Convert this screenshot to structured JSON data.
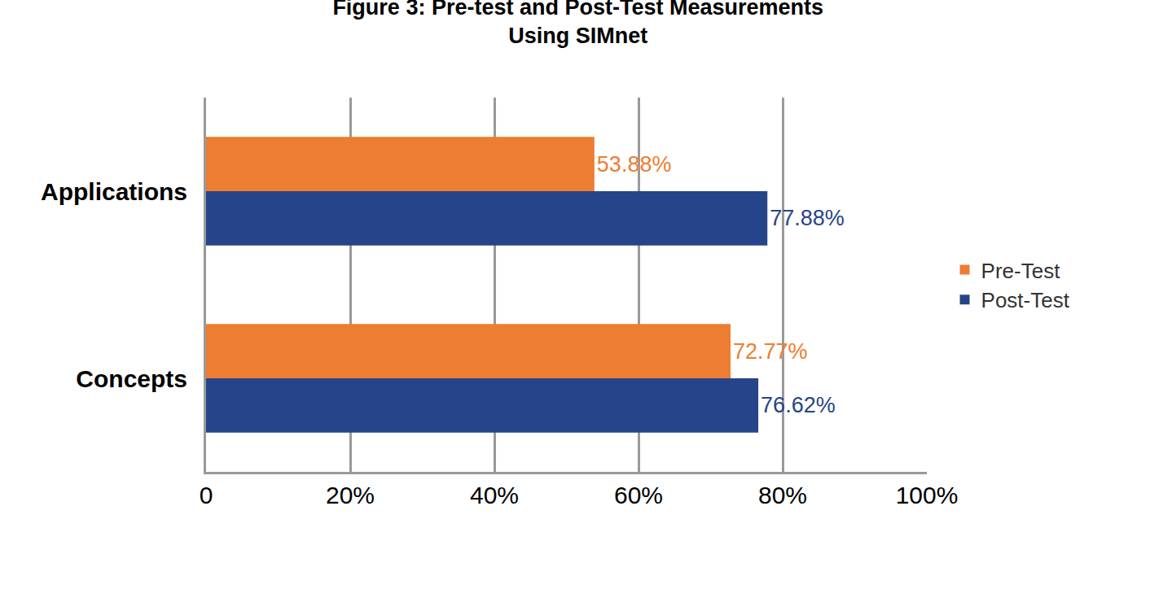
{
  "chart_data": {
    "type": "bar",
    "orientation": "horizontal",
    "title": "Figure 3: Pre-test and Post-Test Measurements",
    "subtitle": "Using SIMnet",
    "categories": [
      "Applications",
      "Concepts"
    ],
    "series": [
      {
        "name": "Pre-Test",
        "color": "#ED7D31",
        "values": [
          53.88,
          72.77
        ],
        "value_labels": [
          "53.88%",
          "72.77%"
        ]
      },
      {
        "name": "Post-Test",
        "color": "#264489",
        "values": [
          77.88,
          76.62
        ],
        "value_labels": [
          "77.88%",
          "76.62%"
        ]
      }
    ],
    "xlim": [
      0,
      100
    ],
    "xticks": [
      0,
      {
        "value": 20,
        "label": "20%"
      },
      {
        "value": 40,
        "label": "40%"
      },
      {
        "value": 60,
        "label": "60%"
      },
      {
        "value": 80,
        "label": "80%"
      },
      {
        "value": 100,
        "label": "100%"
      }
    ],
    "grid": true,
    "legend": "right",
    "data_labels": true
  }
}
